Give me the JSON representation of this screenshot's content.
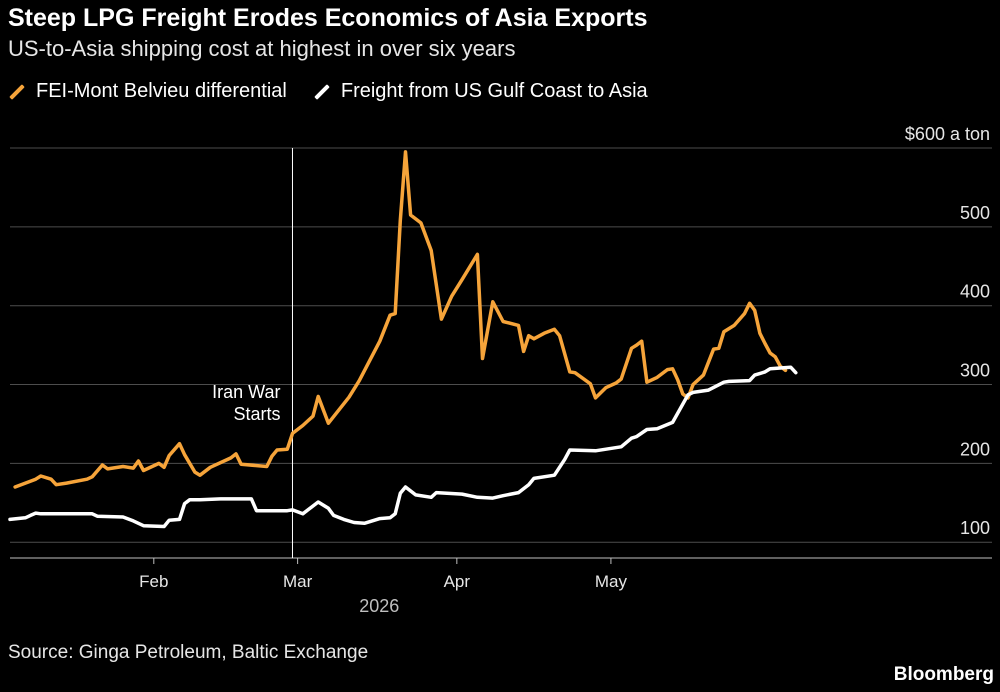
{
  "header": {
    "title": "Steep LPG Freight Erodes Economics of Asia Exports",
    "subtitle": "US-to-Asia shipping cost at highest in over six years"
  },
  "footer": {
    "source": "Source: Ginga Petroleum, Baltic Exchange",
    "brand": "Bloomberg"
  },
  "chart_data": {
    "type": "line",
    "title": "Steep LPG Freight Erodes Economics of Asia Exports",
    "subtitle": "US-to-Asia shipping cost at highest in over six years",
    "xlabel": "2026",
    "ylabel": "",
    "y_unit_label": "$600 a ton",
    "ylim": [
      80,
      600
    ],
    "yticks": [
      100,
      200,
      300,
      400,
      500,
      600
    ],
    "ytick_labels": [
      "100",
      "200",
      "300",
      "400",
      "500",
      "$600 a ton"
    ],
    "xlim": [
      "2026-01-04",
      "2026-05-31"
    ],
    "xticks": [
      "2026-02-01",
      "2026-03-01",
      "2026-04-01",
      "2026-05-01"
    ],
    "xtick_labels": [
      "Feb",
      "Mar",
      "Apr",
      "May"
    ],
    "grid": true,
    "legend_position": "top-left",
    "annotations": [
      {
        "date": "2026-02-28",
        "label": [
          "Iran War",
          "Starts"
        ]
      }
    ],
    "series": [
      {
        "name": "FEI-Mont Belvieu differential",
        "color": "#f6a43a",
        "points": [
          [
            "2026-01-05",
            170
          ],
          [
            "2026-01-07",
            175
          ],
          [
            "2026-01-09",
            180
          ],
          [
            "2026-01-10",
            184
          ],
          [
            "2026-01-12",
            180
          ],
          [
            "2026-01-13",
            173
          ],
          [
            "2026-01-15",
            175
          ],
          [
            "2026-01-19",
            180
          ],
          [
            "2026-01-20",
            183
          ],
          [
            "2026-01-22",
            198
          ],
          [
            "2026-01-23",
            193
          ],
          [
            "2026-01-26",
            196
          ],
          [
            "2026-01-28",
            194
          ],
          [
            "2026-01-29",
            203
          ],
          [
            "2026-01-30",
            191
          ],
          [
            "2026-02-02",
            200
          ],
          [
            "2026-02-03",
            195
          ],
          [
            "2026-02-04",
            210
          ],
          [
            "2026-02-06",
            225
          ],
          [
            "2026-02-07",
            211
          ],
          [
            "2026-02-09",
            189
          ],
          [
            "2026-02-10",
            185
          ],
          [
            "2026-02-12",
            195
          ],
          [
            "2026-02-16",
            207
          ],
          [
            "2026-02-17",
            212
          ],
          [
            "2026-02-18",
            199
          ],
          [
            "2026-02-23",
            196
          ],
          [
            "2026-02-24",
            209
          ],
          [
            "2026-02-25",
            217
          ],
          [
            "2026-02-27",
            218
          ],
          [
            "2026-02-28",
            238
          ],
          [
            "2026-03-02",
            248
          ],
          [
            "2026-03-04",
            260
          ],
          [
            "2026-03-05",
            285
          ],
          [
            "2026-03-07",
            251
          ],
          [
            "2026-03-11",
            284
          ],
          [
            "2026-03-13",
            305
          ],
          [
            "2026-03-15",
            330
          ],
          [
            "2026-03-17",
            355
          ],
          [
            "2026-03-19",
            388
          ],
          [
            "2026-03-20",
            390
          ],
          [
            "2026-03-21",
            508
          ],
          [
            "2026-03-22",
            595
          ],
          [
            "2026-03-23",
            515
          ],
          [
            "2026-03-25",
            505
          ],
          [
            "2026-03-27",
            470
          ],
          [
            "2026-03-29",
            383
          ],
          [
            "2026-03-31",
            412
          ],
          [
            "2026-04-02",
            433
          ],
          [
            "2026-04-05",
            465
          ],
          [
            "2026-04-06",
            333
          ],
          [
            "2026-04-08",
            405
          ],
          [
            "2026-04-10",
            380
          ],
          [
            "2026-04-13",
            375
          ],
          [
            "2026-04-14",
            342
          ],
          [
            "2026-04-15",
            362
          ],
          [
            "2026-04-16",
            358
          ],
          [
            "2026-04-18",
            365
          ],
          [
            "2026-04-20",
            370
          ],
          [
            "2026-04-21",
            362
          ],
          [
            "2026-04-23",
            316
          ],
          [
            "2026-04-24",
            315
          ],
          [
            "2026-04-27",
            301
          ],
          [
            "2026-04-28",
            283
          ],
          [
            "2026-04-30",
            296
          ],
          [
            "2026-05-02",
            302
          ],
          [
            "2026-05-03",
            307
          ],
          [
            "2026-05-05",
            346
          ],
          [
            "2026-05-06",
            350
          ],
          [
            "2026-05-07",
            355
          ],
          [
            "2026-05-08",
            303
          ],
          [
            "2026-05-10",
            309
          ],
          [
            "2026-05-12",
            319
          ],
          [
            "2026-05-13",
            320
          ],
          [
            "2026-05-14",
            306
          ],
          [
            "2026-05-15",
            288
          ],
          [
            "2026-05-16",
            283
          ],
          [
            "2026-05-17",
            300
          ],
          [
            "2026-05-19",
            312
          ],
          [
            "2026-05-21",
            345
          ],
          [
            "2026-05-22",
            346
          ],
          [
            "2026-05-23",
            367
          ],
          [
            "2026-05-25",
            375
          ],
          [
            "2026-05-27",
            390
          ],
          [
            "2026-05-28",
            403
          ],
          [
            "2026-05-29",
            394
          ],
          [
            "2026-05-30",
            365
          ],
          [
            "2026-05-31",
            352
          ],
          [
            "2026-06-01",
            340
          ],
          [
            "2026-06-02",
            335
          ],
          [
            "2026-06-03",
            323
          ],
          [
            "2026-06-04",
            318
          ]
        ]
      },
      {
        "name": "Freight from US Gulf Coast to Asia",
        "color": "#ffffff",
        "points": [
          [
            "2026-01-04",
            129
          ],
          [
            "2026-01-07",
            131
          ],
          [
            "2026-01-08",
            134
          ],
          [
            "2026-01-09",
            137
          ],
          [
            "2026-01-10",
            136
          ],
          [
            "2026-01-14",
            136
          ],
          [
            "2026-01-20",
            136
          ],
          [
            "2026-01-21",
            133
          ],
          [
            "2026-01-26",
            132
          ],
          [
            "2026-01-28",
            127
          ],
          [
            "2026-01-30",
            121
          ],
          [
            "2026-02-03",
            120
          ],
          [
            "2026-02-04",
            128
          ],
          [
            "2026-02-06",
            129
          ],
          [
            "2026-02-07",
            149
          ],
          [
            "2026-02-08",
            154
          ],
          [
            "2026-02-10",
            154
          ],
          [
            "2026-02-14",
            155
          ],
          [
            "2026-02-20",
            155
          ],
          [
            "2026-02-21",
            140
          ],
          [
            "2026-02-27",
            140
          ],
          [
            "2026-02-28",
            141
          ],
          [
            "2026-03-02",
            136
          ],
          [
            "2026-03-03",
            141
          ],
          [
            "2026-03-04",
            146
          ],
          [
            "2026-03-05",
            151
          ],
          [
            "2026-03-07",
            143
          ],
          [
            "2026-03-08",
            134
          ],
          [
            "2026-03-10",
            129
          ],
          [
            "2026-03-12",
            125
          ],
          [
            "2026-03-14",
            124
          ],
          [
            "2026-03-17",
            130
          ],
          [
            "2026-03-19",
            131
          ],
          [
            "2026-03-20",
            136
          ],
          [
            "2026-03-21",
            162
          ],
          [
            "2026-03-22",
            170
          ],
          [
            "2026-03-24",
            160
          ],
          [
            "2026-03-27",
            157
          ],
          [
            "2026-03-28",
            163
          ],
          [
            "2026-04-02",
            161
          ],
          [
            "2026-04-05",
            157
          ],
          [
            "2026-04-08",
            156
          ],
          [
            "2026-04-10",
            159
          ],
          [
            "2026-04-13",
            163
          ],
          [
            "2026-04-15",
            173
          ],
          [
            "2026-04-16",
            181
          ],
          [
            "2026-04-20",
            185
          ],
          [
            "2026-04-22",
            205
          ],
          [
            "2026-04-23",
            217
          ],
          [
            "2026-04-28",
            216
          ],
          [
            "2026-05-03",
            221
          ],
          [
            "2026-05-05",
            232
          ],
          [
            "2026-05-06",
            234
          ],
          [
            "2026-05-08",
            243
          ],
          [
            "2026-05-10",
            244
          ],
          [
            "2026-05-13",
            252
          ],
          [
            "2026-05-16",
            287
          ],
          [
            "2026-05-17",
            290
          ],
          [
            "2026-05-20",
            293
          ],
          [
            "2026-05-23",
            303
          ],
          [
            "2026-05-24",
            304
          ],
          [
            "2026-05-28",
            305
          ],
          [
            "2026-05-29",
            312
          ],
          [
            "2026-05-31",
            316
          ],
          [
            "2026-06-01",
            320
          ],
          [
            "2026-06-03",
            321
          ],
          [
            "2026-06-05",
            322
          ],
          [
            "2026-06-06",
            315
          ]
        ]
      }
    ]
  }
}
